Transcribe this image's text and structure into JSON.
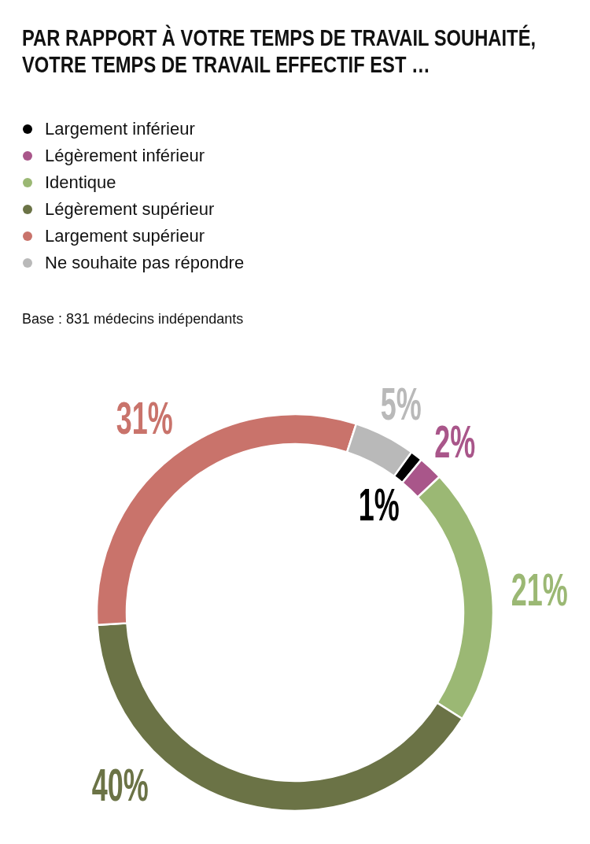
{
  "chart_data": {
    "type": "donut",
    "title": "PAR RAPPORT À VOTRE TEMPS DE TRAVAIL SOUHAITÉ,\nVOTRE TEMPS DE TRAVAIL EFFECTIF EST …",
    "categories": [
      "Largement inférieur",
      "Légèrement inférieur",
      "Identique",
      "Légèrement supérieur",
      "Largement supérieur",
      "Ne souhaite pas répondre"
    ],
    "values": [
      1,
      2,
      21,
      40,
      31,
      5
    ],
    "colors": [
      "#000000",
      "#a9568a",
      "#9bb874",
      "#6b7346",
      "#c9736b",
      "#b9b9b9"
    ],
    "value_labels": [
      "1%",
      "2%",
      "21%",
      "40%",
      "31%",
      "5%"
    ],
    "legend": "top left",
    "annotations": [
      "Base : 831 médecins indépendants"
    ]
  }
}
